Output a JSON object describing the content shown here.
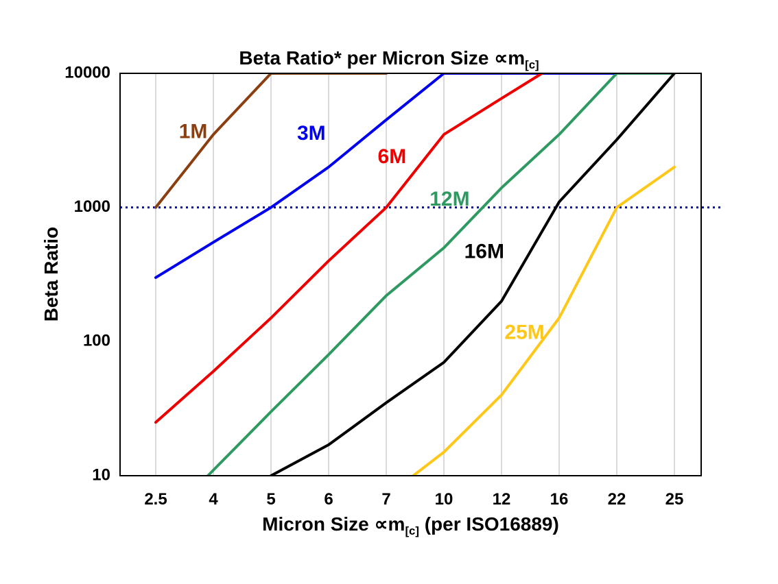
{
  "title": {
    "pre": "Beta Ratio* per Micron Size ∝m",
    "sub": "[c]"
  },
  "y_axis": {
    "label": "Beta Ratio"
  },
  "x_axis": {
    "pre": "Micron Size ∝m",
    "sub": "[c]",
    "post": " (per ISO16889)"
  },
  "chart_data": {
    "type": "line",
    "title": "Beta Ratio* per Micron Size ∝m[c]",
    "xlabel": "Micron Size ∝m[c] (per ISO16889)",
    "ylabel": "Beta Ratio",
    "x_categories": [
      "2.5",
      "4",
      "5",
      "6",
      "7",
      "10",
      "12",
      "16",
      "22",
      "25"
    ],
    "y_scale": "log",
    "ylim": [
      10,
      10000
    ],
    "y_ticks": [
      "10",
      "100",
      "1000",
      "10000"
    ],
    "grid": "vertical-only",
    "grid_color": "#c9c9c9",
    "legend": "inline-series-labels",
    "reference_line": {
      "y": 1000,
      "color": "#0000cc",
      "style": "dotted"
    },
    "series": [
      {
        "name": "1M",
        "color": "#8b3e0f",
        "values": [
          1000,
          3500,
          10000,
          10000,
          10000,
          null,
          null,
          null,
          null,
          null
        ],
        "label_pos": {
          "xi": 0.65,
          "v": 3600
        }
      },
      {
        "name": "3M",
        "color": "#0000ee",
        "values": [
          300,
          550,
          1000,
          2000,
          4500,
          10000,
          10000,
          10000,
          10000,
          null
        ],
        "label_pos": {
          "xi": 2.7,
          "v": 3500
        }
      },
      {
        "name": "6M",
        "color": "#ee0000",
        "values": [
          25,
          60,
          150,
          400,
          1000,
          3500,
          6500,
          12000,
          null,
          null
        ],
        "label_pos": {
          "xi": 4.1,
          "v": 2350
        }
      },
      {
        "name": "12M",
        "color": "#2e9960",
        "values": [
          4,
          11,
          30,
          80,
          220,
          500,
          1400,
          3500,
          10000,
          10000
        ],
        "label_pos": {
          "xi": 5.1,
          "v": 1130
        }
      },
      {
        "name": "16M",
        "color": "#000000",
        "values": [
          null,
          null,
          10,
          17,
          35,
          70,
          200,
          1100,
          3200,
          10000
        ],
        "label_pos": {
          "xi": 5.7,
          "v": 460
        }
      },
      {
        "name": "25M",
        "color": "#ffc718",
        "values": [
          null,
          null,
          null,
          null,
          7,
          15,
          40,
          150,
          1000,
          2000
        ],
        "label_pos": {
          "xi": 6.4,
          "v": 115
        }
      }
    ]
  }
}
